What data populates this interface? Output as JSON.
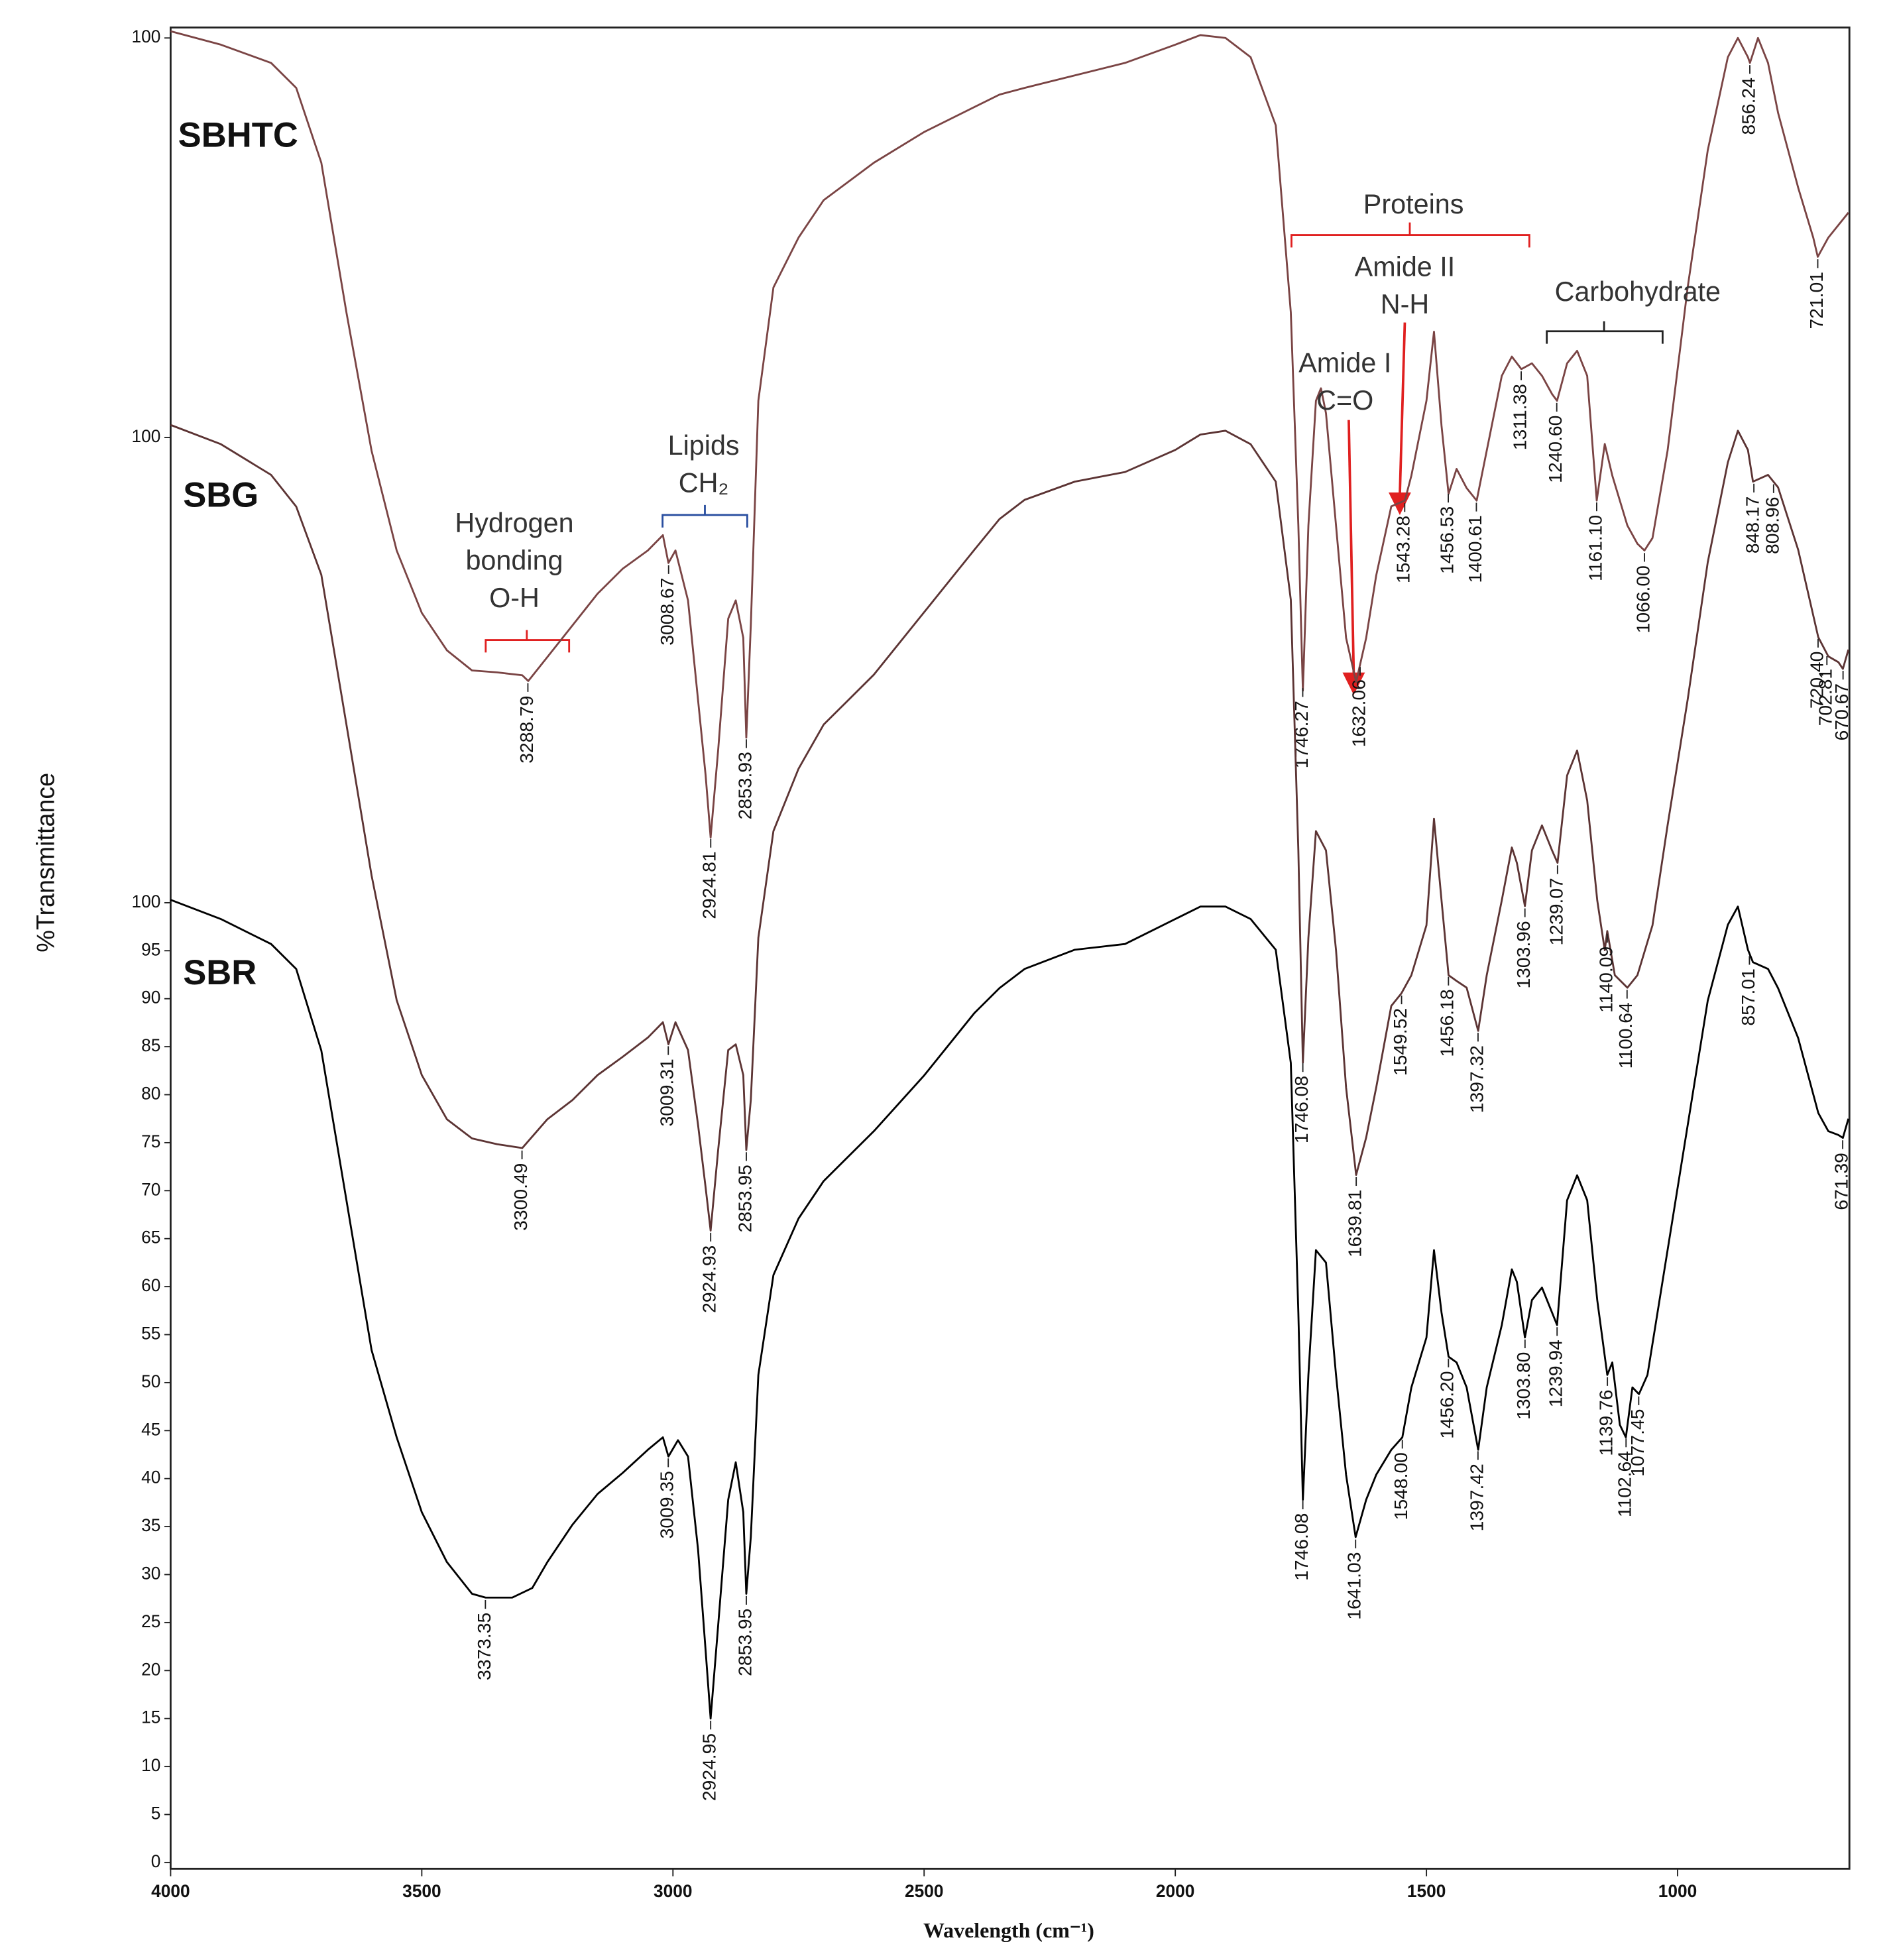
{
  "chart_data": {
    "type": "line",
    "ylabel": "%Transmittance",
    "xlabel": "Wavelength (cm⁻¹)",
    "xlim": [
      4000,
      658
    ],
    "xticks": [
      4000,
      3500,
      3000,
      2500,
      2000,
      1500,
      1000
    ],
    "annotations": [
      {
        "lines": [
          "Hydrogen",
          "bonding",
          "O-H"
        ]
      },
      {
        "lines": [
          "Lipids",
          "CH₂"
        ]
      },
      {
        "lines": [
          "Proteins"
        ]
      },
      {
        "lines": [
          "Amide II",
          "N-H"
        ]
      },
      {
        "lines": [
          "Amide I",
          "C=O"
        ]
      },
      {
        "lines": [
          "Carbohydrate"
        ]
      }
    ],
    "series": [
      {
        "name": "SBHTC",
        "color": "#7a4444",
        "ylim": [
          -90.1,
          100.7
        ],
        "yticks": [
          100
        ],
        "x": [
          4000,
          3900,
          3800,
          3750,
          3700,
          3650,
          3600,
          3550,
          3500,
          3450,
          3400,
          3350,
          3300,
          3288,
          3250,
          3200,
          3150,
          3100,
          3050,
          3020,
          3009,
          2995,
          2970,
          2950,
          2935,
          2925,
          2910,
          2890,
          2875,
          2860,
          2854,
          2845,
          2830,
          2800,
          2750,
          2700,
          2600,
          2500,
          2400,
          2350,
          2300,
          2200,
          2100,
          2000,
          1950,
          1900,
          1850,
          1800,
          1770,
          1755,
          1746,
          1735,
          1720,
          1710,
          1700,
          1680,
          1660,
          1640,
          1620,
          1600,
          1570,
          1543,
          1530,
          1500,
          1485,
          1470,
          1456,
          1440,
          1420,
          1400,
          1380,
          1350,
          1330,
          1311,
          1290,
          1270,
          1250,
          1240,
          1220,
          1200,
          1180,
          1161,
          1145,
          1130,
          1100,
          1080,
          1066,
          1050,
          1020,
          980,
          940,
          900,
          880,
          860,
          856,
          840,
          820,
          800,
          760,
          730,
          721,
          700,
          680,
          660
        ],
        "values": [
          100.7,
          99.3,
          97.4,
          94.8,
          87.0,
          71.4,
          57.0,
          46.6,
          40.1,
          36.2,
          34.1,
          33.9,
          33.6,
          33.0,
          35.5,
          38.8,
          42.1,
          44.7,
          46.6,
          48.2,
          45.3,
          46.6,
          41.4,
          31.0,
          23.2,
          16.7,
          25.8,
          39.5,
          41.4,
          37.5,
          27.1,
          38.8,
          62.2,
          74.0,
          79.2,
          83.1,
          87.0,
          90.2,
          92.8,
          94.1,
          94.8,
          96.1,
          97.4,
          99.3,
          100.3,
          100.0,
          98.0,
          90.9,
          71.4,
          49.2,
          32.0,
          49.2,
          62.2,
          63.5,
          60.9,
          49.2,
          37.5,
          32.9,
          37.5,
          44.0,
          51.2,
          51.8,
          54.4,
          62.2,
          69.4,
          59.6,
          52.5,
          55.1,
          53.1,
          51.8,
          57.0,
          64.8,
          66.8,
          65.5,
          66.1,
          64.8,
          62.9,
          62.2,
          66.1,
          67.4,
          64.8,
          51.8,
          57.7,
          54.4,
          49.2,
          47.3,
          46.6,
          47.9,
          57.0,
          74.0,
          88.3,
          98.0,
          100.0,
          98.0,
          97.4,
          100.0,
          97.4,
          92.2,
          84.4,
          79.2,
          77.2,
          79.2,
          80.5,
          81.8
        ],
        "peaks": [
          3288.79,
          3008.67,
          2924.81,
          2853.93,
          1746.27,
          1632.06,
          1543.28,
          1456.53,
          1400.61,
          1311.38,
          {
            "value": 1240.6,
            "label": "1240.60"
          },
          {
            "value": 1161.1,
            "label": "1161.10"
          },
          {
            "value": 1066,
            "label": "1066.00"
          },
          856.24,
          721.01
        ]
      },
      {
        "name": "SBG",
        "color": "#5c3434",
        "ylim": [
          -48.4,
          142.3
        ],
        "yticks": [
          100
        ],
        "x": [
          4000,
          3900,
          3800,
          3750,
          3700,
          3650,
          3600,
          3550,
          3500,
          3450,
          3400,
          3350,
          3300,
          3250,
          3200,
          3150,
          3100,
          3050,
          3020,
          3009,
          2995,
          2970,
          2950,
          2935,
          2925,
          2910,
          2890,
          2875,
          2860,
          2854,
          2845,
          2830,
          2800,
          2750,
          2700,
          2600,
          2500,
          2400,
          2350,
          2300,
          2200,
          2100,
          2000,
          1950,
          1900,
          1850,
          1800,
          1770,
          1755,
          1746,
          1735,
          1720,
          1700,
          1680,
          1660,
          1640,
          1620,
          1600,
          1570,
          1550,
          1530,
          1500,
          1485,
          1470,
          1456,
          1440,
          1420,
          1397,
          1380,
          1350,
          1330,
          1320,
          1304,
          1290,
          1270,
          1250,
          1239,
          1220,
          1200,
          1180,
          1160,
          1145,
          1140,
          1125,
          1100,
          1080,
          1050,
          1020,
          980,
          940,
          900,
          880,
          860,
          850,
          820,
          800,
          760,
          720,
          700,
          680,
          671,
          660
        ],
        "values": [
          101.3,
          99.3,
          96.1,
          92.8,
          85.7,
          70.1,
          54.4,
          41.4,
          33.6,
          29.0,
          27.0,
          26.4,
          26.0,
          29.0,
          31.0,
          33.6,
          35.5,
          37.5,
          39.1,
          36.8,
          39.1,
          36.2,
          28.4,
          21.9,
          17.4,
          25.8,
          36.2,
          36.8,
          33.6,
          25.8,
          31.0,
          47.9,
          59.0,
          65.5,
          70.1,
          75.3,
          81.8,
          88.3,
          91.5,
          93.5,
          95.4,
          96.4,
          98.7,
          100.3,
          100.7,
          99.3,
          95.4,
          83.1,
          57.0,
          34.9,
          47.9,
          59.0,
          57.0,
          46.6,
          32.3,
          23.2,
          27.1,
          32.3,
          40.8,
          42.1,
          44.0,
          49.2,
          60.3,
          51.8,
          44.0,
          43.4,
          42.7,
          38.2,
          44.0,
          51.8,
          57.3,
          55.7,
          51.2,
          57.0,
          59.6,
          57.0,
          55.7,
          64.8,
          67.4,
          62.2,
          51.8,
          46.6,
          48.6,
          44.0,
          42.7,
          44.0,
          49.2,
          59.6,
          72.7,
          87.0,
          97.4,
          100.7,
          98.7,
          95.4,
          96.1,
          94.8,
          88.3,
          79.2,
          77.2,
          76.6,
          75.9,
          77.9
        ],
        "peaks": [
          3300.49,
          3009.31,
          2924.93,
          2853.95,
          1746.08,
          1639.81,
          1549.52,
          1456.18,
          1397.32,
          1303.96,
          1239.07,
          1140.09,
          1100.64,
          848.17,
          808.96,
          {
            "value": 720.4,
            "label": "720.40"
          },
          702.81,
          670.67
        ]
      },
      {
        "name": "SBR",
        "color": "#000000",
        "ylim": [
          0,
          190.8
        ],
        "yticks": [
          0,
          5,
          10,
          15,
          20,
          25,
          30,
          35,
          40,
          45,
          50,
          55,
          60,
          65,
          70,
          75,
          80,
          85,
          90,
          95,
          100
        ],
        "x": [
          4000,
          3900,
          3800,
          3750,
          3700,
          3650,
          3600,
          3550,
          3500,
          3450,
          3400,
          3373,
          3320,
          3280,
          3250,
          3200,
          3150,
          3100,
          3050,
          3020,
          3009,
          2990,
          2970,
          2950,
          2935,
          2925,
          2910,
          2890,
          2875,
          2860,
          2854,
          2845,
          2830,
          2800,
          2750,
          2700,
          2600,
          2500,
          2400,
          2350,
          2300,
          2200,
          2100,
          2000,
          1950,
          1900,
          1850,
          1800,
          1770,
          1755,
          1746,
          1735,
          1720,
          1700,
          1680,
          1660,
          1641,
          1620,
          1600,
          1570,
          1548,
          1530,
          1500,
          1485,
          1470,
          1456,
          1440,
          1420,
          1397,
          1380,
          1350,
          1330,
          1320,
          1304,
          1290,
          1270,
          1250,
          1240,
          1220,
          1200,
          1180,
          1160,
          1140,
          1130,
          1115,
          1103,
          1090,
          1077,
          1060,
          1020,
          980,
          940,
          900,
          880,
          860,
          850,
          820,
          800,
          760,
          720,
          700,
          680,
          671,
          660
        ],
        "values": [
          100.3,
          98.3,
          95.7,
          93.1,
          84.6,
          69.0,
          53.4,
          44.3,
          36.5,
          31.3,
          28.0,
          27.6,
          27.6,
          28.6,
          31.3,
          35.2,
          38.4,
          40.6,
          43.0,
          44.3,
          42.3,
          44.0,
          42.3,
          32.6,
          22.1,
          15.0,
          24.7,
          37.8,
          41.7,
          36.5,
          28.0,
          33.9,
          50.8,
          61.2,
          67.1,
          71.0,
          76.2,
          82.0,
          88.5,
          91.1,
          93.1,
          95.1,
          95.7,
          98.3,
          99.6,
          99.6,
          98.3,
          95.1,
          83.3,
          57.3,
          37.8,
          50.8,
          63.8,
          62.5,
          50.8,
          40.4,
          33.9,
          37.8,
          40.4,
          43.0,
          44.3,
          49.5,
          54.7,
          63.8,
          57.3,
          52.7,
          52.1,
          49.5,
          43.0,
          49.5,
          56.0,
          61.8,
          60.5,
          54.7,
          58.6,
          59.9,
          57.3,
          56.0,
          69.0,
          71.6,
          69.0,
          58.6,
          50.8,
          52.1,
          45.6,
          44.3,
          49.5,
          48.8,
          50.8,
          63.8,
          76.8,
          89.8,
          97.7,
          99.6,
          95.1,
          93.8,
          93.1,
          91.1,
          85.9,
          78.1,
          76.2,
          75.8,
          75.5,
          77.5
        ],
        "peaks": [
          3373.35,
          3009.35,
          2924.95,
          2853.95,
          1746.08,
          1641.03,
          {
            "value": 1548,
            "label": "1548.00"
          },
          {
            "value": 1456.2,
            "label": "1456.20"
          },
          1397.42,
          {
            "value": 1303.8,
            "label": "1303.80"
          },
          1239.94,
          1139.76,
          1102.64,
          1077.45,
          857.01,
          671.39
        ]
      }
    ]
  }
}
